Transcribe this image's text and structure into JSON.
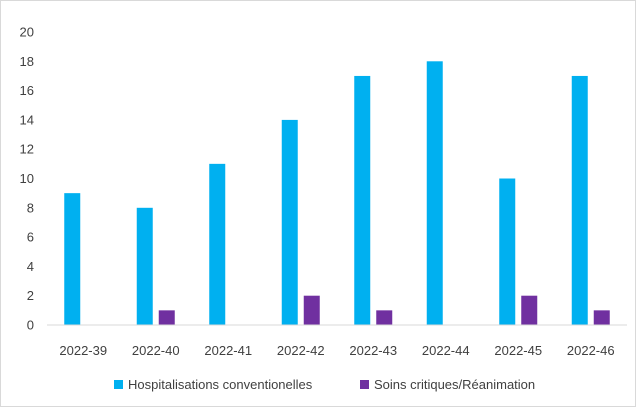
{
  "chart_data": {
    "type": "bar",
    "categories": [
      "2022-39",
      "2022-40",
      "2022-41",
      "2022-42",
      "2022-43",
      "2022-44",
      "2022-45",
      "2022-46"
    ],
    "series": [
      {
        "name": "Hospitalisations conventionelles",
        "color": "#00B0F0",
        "values": [
          9,
          8,
          11,
          14,
          17,
          18,
          10,
          17
        ]
      },
      {
        "name": "Soins critiques/Réanimation",
        "color": "#7030A0",
        "values": [
          0,
          1,
          0,
          2,
          1,
          0,
          2,
          1
        ]
      }
    ],
    "ylim": [
      0,
      20
    ],
    "yticks": [
      0,
      2,
      4,
      6,
      8,
      10,
      12,
      14,
      16,
      18,
      20
    ],
    "grid": false,
    "legend_position": "bottom",
    "title": "",
    "xlabel": "",
    "ylabel": ""
  }
}
